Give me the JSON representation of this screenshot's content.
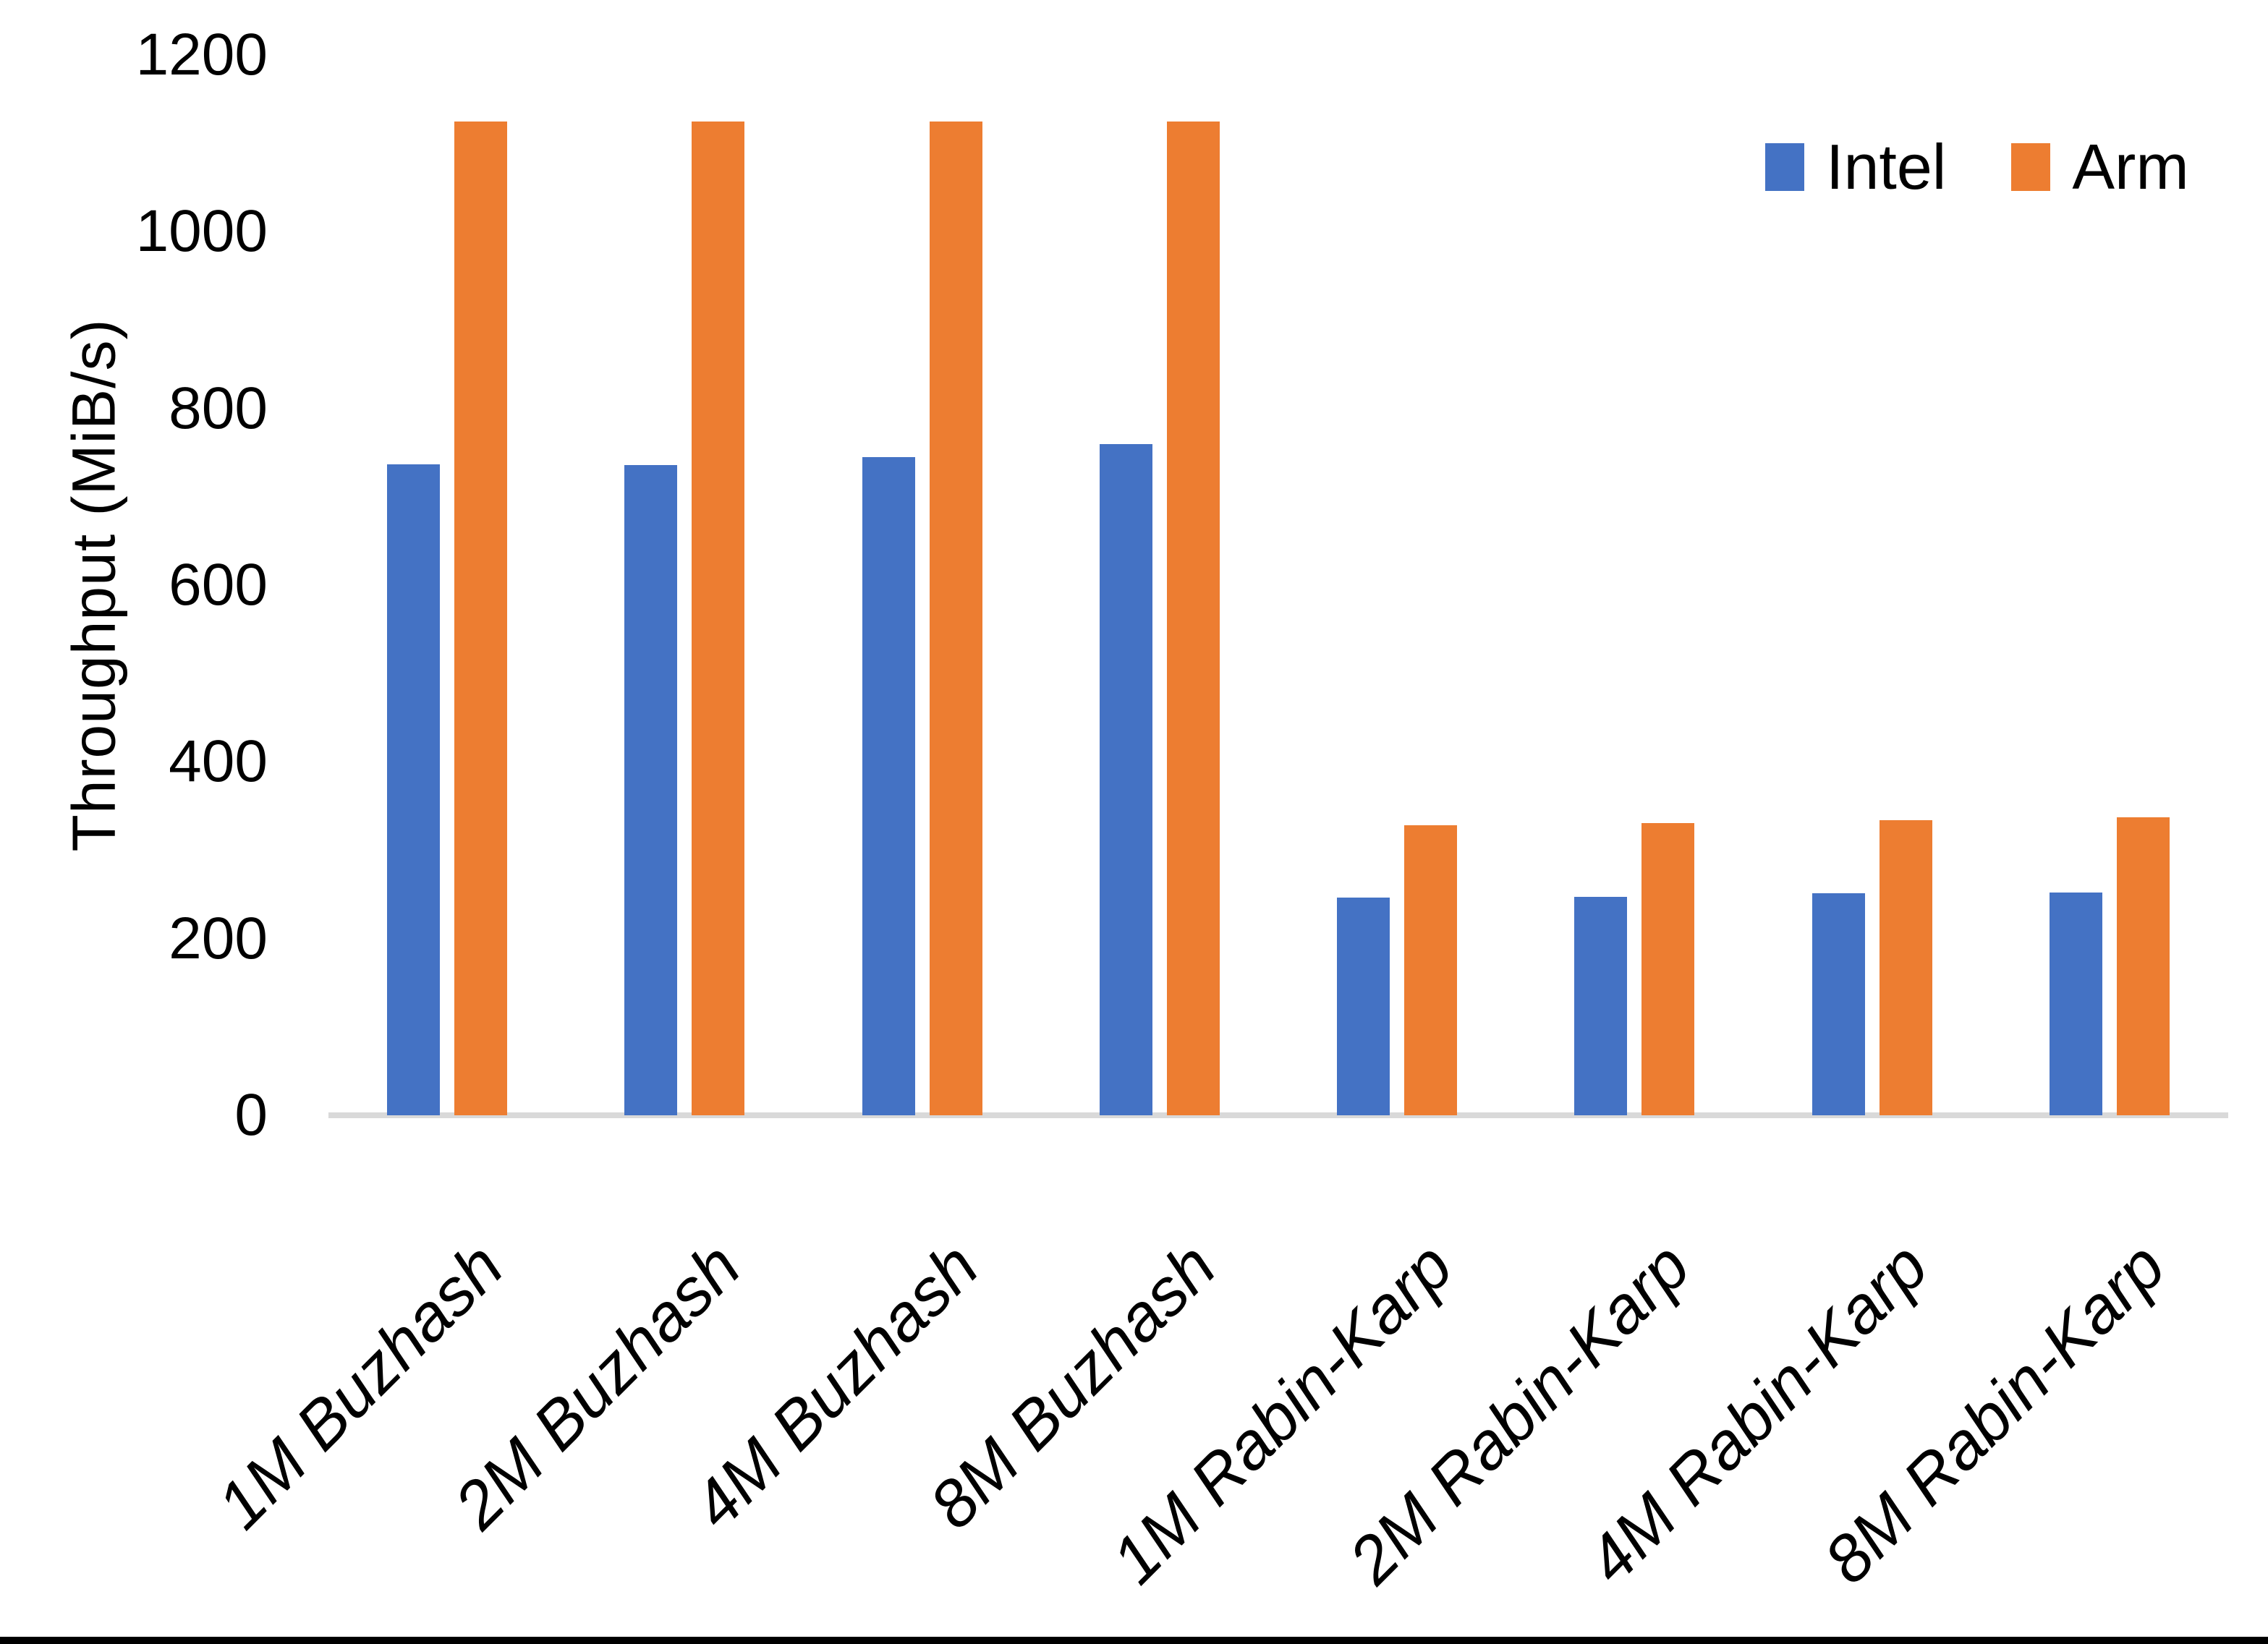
{
  "chart_data": {
    "type": "bar",
    "title": "",
    "xlabel": "",
    "ylabel": "Throughput (MiB/s)",
    "ylim": [
      0,
      1200
    ],
    "yticks": [
      0,
      200,
      400,
      600,
      800,
      1000,
      1200
    ],
    "grid": false,
    "axis_line_color": "#d9d9d9",
    "legend_position": "top-right",
    "categories": [
      "1M Buzhash",
      "2M Buzhash",
      "4M Buzhash",
      "8M Buzhash",
      "1M Rabin-Karp",
      "2M Rabin-Karp",
      "4M Rabin-Karp",
      "8M Rabin-Karp"
    ],
    "series": [
      {
        "name": "Intel",
        "color": "#4472c4",
        "values": [
          737,
          736,
          745,
          760,
          246,
          247,
          251,
          252
        ]
      },
      {
        "name": "Arm",
        "color": "#ed7d31",
        "values": [
          1125,
          1125,
          1125,
          1125,
          328,
          331,
          334,
          337
        ]
      }
    ]
  }
}
